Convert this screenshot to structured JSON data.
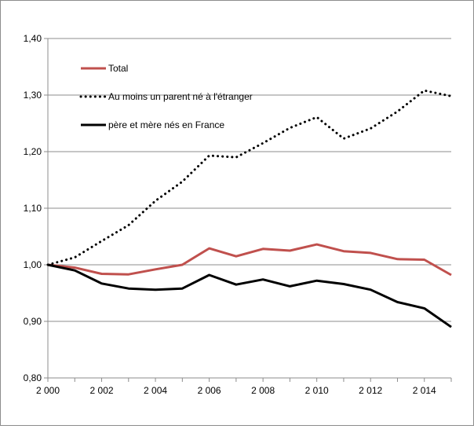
{
  "chart_data": {
    "type": "line",
    "title": "",
    "xlabel": "",
    "ylabel": "",
    "x": [
      2000,
      2001,
      2002,
      2003,
      2004,
      2005,
      2006,
      2007,
      2008,
      2009,
      2010,
      2011,
      2012,
      2013,
      2014,
      2015
    ],
    "xlim": [
      2000,
      2015
    ],
    "ylim": [
      0.8,
      1.4
    ],
    "grid": "horizontal",
    "x_ticks": [
      {
        "value": 2000,
        "label": "2 000"
      },
      {
        "value": 2002,
        "label": "2 002"
      },
      {
        "value": 2004,
        "label": "2 004"
      },
      {
        "value": 2006,
        "label": "2 006"
      },
      {
        "value": 2008,
        "label": "2 008"
      },
      {
        "value": 2010,
        "label": "2 010"
      },
      {
        "value": 2012,
        "label": "2 012"
      },
      {
        "value": 2014,
        "label": "2 014"
      }
    ],
    "y_ticks": [
      {
        "value": 0.8,
        "label": "0,80"
      },
      {
        "value": 0.9,
        "label": "0,90"
      },
      {
        "value": 1.0,
        "label": "1,00"
      },
      {
        "value": 1.1,
        "label": "1,10"
      },
      {
        "value": 1.2,
        "label": "1,20"
      },
      {
        "value": 1.3,
        "label": "1,30"
      },
      {
        "value": 1.4,
        "label": "1,40"
      }
    ],
    "legend_position": "top-left",
    "series": [
      {
        "name": "Total",
        "color": "#c0504d",
        "style": "solid",
        "values": [
          1.0,
          0.995,
          0.984,
          0.983,
          0.992,
          1.0,
          1.029,
          1.015,
          1.028,
          1.025,
          1.036,
          1.024,
          1.021,
          1.01,
          1.009,
          0.982
        ]
      },
      {
        "name": "Au moins un parent né à l'étranger",
        "color": "#000000",
        "style": "dotted",
        "values": [
          1.0,
          1.013,
          1.042,
          1.07,
          1.113,
          1.147,
          1.193,
          1.19,
          1.215,
          1.242,
          1.261,
          1.223,
          1.241,
          1.271,
          1.308,
          1.298
        ]
      },
      {
        "name": "père et mère nés en France",
        "color": "#000000",
        "style": "solid",
        "values": [
          1.0,
          0.99,
          0.967,
          0.958,
          0.956,
          0.958,
          0.982,
          0.965,
          0.974,
          0.962,
          0.972,
          0.966,
          0.956,
          0.934,
          0.923,
          0.89
        ]
      }
    ]
  }
}
